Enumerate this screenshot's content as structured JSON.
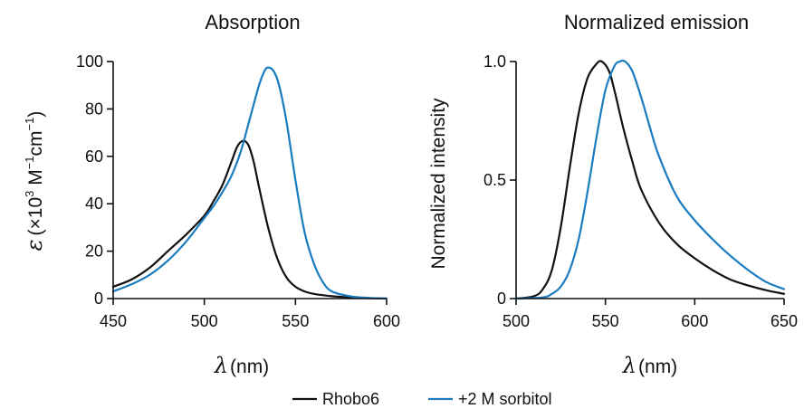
{
  "legend": [
    {
      "name": "Rhobo6",
      "color": "#111111"
    },
    {
      "name": "+2 M sorbitol",
      "color": "#1a7bbf"
    }
  ],
  "chart_data": [
    {
      "type": "line",
      "title": "Absorption",
      "xlabel_symbol": "λ",
      "xlabel": "(nm)",
      "ylabel_symbol": "ε",
      "ylabel_parts": {
        "open": "(×10",
        "exp1": "3",
        "m": " M",
        "exp2": "−1",
        "cm": "cm",
        "exp3": "−1",
        "close": ")"
      },
      "xlim": [
        450,
        600
      ],
      "ylim": [
        0,
        100
      ],
      "xticks": [
        450,
        500,
        550,
        600
      ],
      "yticks": [
        0,
        20,
        40,
        60,
        80,
        100
      ],
      "series": [
        {
          "name": "Rhobo6",
          "color": "#111111",
          "x": [
            450,
            460,
            470,
            480,
            490,
            500,
            505,
            510,
            515,
            518,
            521,
            524,
            527,
            530,
            535,
            540,
            545,
            550,
            555,
            560,
            570,
            580,
            590,
            600
          ],
          "y": [
            5,
            8,
            13,
            20,
            27,
            35,
            41,
            48,
            58,
            64,
            66.5,
            65,
            58,
            47,
            30,
            17,
            9,
            5,
            3,
            2,
            1,
            0.5,
            0.2,
            0
          ]
        },
        {
          "name": "+2 M sorbitol",
          "color": "#1a7bbf",
          "x": [
            450,
            460,
            470,
            480,
            490,
            500,
            505,
            510,
            515,
            520,
            525,
            530,
            533,
            535,
            538,
            541,
            545,
            550,
            555,
            560,
            565,
            570,
            580,
            590,
            600
          ],
          "y": [
            3,
            6,
            10,
            16,
            24,
            34,
            39,
            45,
            52,
            62,
            76,
            90,
            96,
            97.5,
            96,
            90,
            75,
            50,
            28,
            15,
            7,
            3,
            1,
            0.3,
            0
          ]
        }
      ]
    },
    {
      "type": "line",
      "title": "Normalized emission",
      "xlabel_symbol": "λ",
      "xlabel": "(nm)",
      "ylabel": "Normalized intensity",
      "xlim": [
        500,
        650
      ],
      "ylim": [
        0,
        1.0
      ],
      "xticks": [
        500,
        550,
        600,
        650
      ],
      "yticks": [
        0,
        0.5,
        1.0
      ],
      "ytick_labels": [
        "0",
        "0.5",
        "1.0"
      ],
      "series": [
        {
          "name": "Rhobo6",
          "color": "#111111",
          "x": [
            500,
            510,
            515,
            520,
            525,
            530,
            535,
            540,
            545,
            548,
            552,
            555,
            560,
            565,
            570,
            580,
            590,
            600,
            610,
            620,
            630,
            640,
            650
          ],
          "y": [
            0,
            0.01,
            0.04,
            0.12,
            0.3,
            0.55,
            0.78,
            0.93,
            0.99,
            1.0,
            0.96,
            0.88,
            0.72,
            0.58,
            0.46,
            0.32,
            0.23,
            0.17,
            0.12,
            0.08,
            0.055,
            0.035,
            0.02
          ]
        },
        {
          "name": "+2 M sorbitol",
          "color": "#1a7bbf",
          "x": [
            500,
            515,
            520,
            525,
            530,
            535,
            540,
            545,
            550,
            555,
            558,
            561,
            565,
            570,
            575,
            580,
            590,
            600,
            610,
            620,
            630,
            640,
            650
          ],
          "y": [
            0,
            0.005,
            0.02,
            0.05,
            0.12,
            0.25,
            0.45,
            0.68,
            0.88,
            0.98,
            1.0,
            1.0,
            0.96,
            0.85,
            0.72,
            0.6,
            0.43,
            0.33,
            0.25,
            0.18,
            0.12,
            0.07,
            0.04
          ]
        }
      ]
    }
  ]
}
